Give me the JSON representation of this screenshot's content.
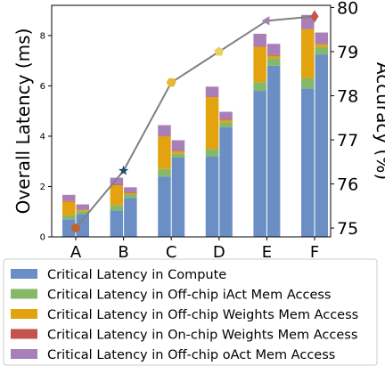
{
  "chart_data": {
    "type": "bar",
    "categories": [
      "A",
      "B",
      "C",
      "D",
      "E",
      "F"
    ],
    "y_left": {
      "label": "Overall Latency (ms)",
      "ylim": [
        0,
        9.2
      ],
      "ticks": [
        0,
        2,
        4,
        6,
        8
      ]
    },
    "y_right": {
      "label": "Accuracy (%)",
      "ylim": [
        74.8,
        80.05
      ],
      "ticks": [
        75,
        76,
        77,
        78,
        79,
        80
      ]
    },
    "grid": false,
    "legend_placement": "bottom",
    "stack_order": [
      "Compute",
      "Off-chip iAct",
      "Off-chip Weights",
      "On-chip Weights",
      "Off-chip oAct"
    ],
    "series": [
      {
        "name": "Critical Latency in Compute",
        "color": "#6b8fc4",
        "group1": [
          0.7,
          1.05,
          2.4,
          3.2,
          5.8,
          5.9
        ],
        "group2": [
          0.9,
          1.55,
          3.15,
          4.35,
          6.8,
          7.25
        ]
      },
      {
        "name": "Critical Latency in Off-chip iAct Mem Access",
        "color": "#86b86a",
        "group1": [
          0.15,
          0.2,
          0.3,
          0.3,
          0.35,
          0.4
        ],
        "group2": [
          0.12,
          0.15,
          0.15,
          0.2,
          0.3,
          0.3
        ]
      },
      {
        "name": "Critical Latency in Off-chip Weights Mem Access",
        "color": "#e3a30f",
        "group1": [
          0.55,
          0.8,
          1.3,
          2.05,
          1.4,
          1.95
        ],
        "group2": [
          0.05,
          0.05,
          0.1,
          0.1,
          0.1,
          0.1
        ]
      },
      {
        "name": "Critical Latency in On-chip Weights Mem Access",
        "color": "#c2544d",
        "group1": [
          0.02,
          0.02,
          0.02,
          0.02,
          0.02,
          0.02
        ],
        "group2": [
          0.02,
          0.02,
          0.02,
          0.02,
          0.02,
          0.02
        ]
      },
      {
        "name": "Critical Latency in Off-chip oAct Mem Access",
        "color": "#a97fb8",
        "group1": [
          0.25,
          0.28,
          0.42,
          0.4,
          0.5,
          0.55
        ],
        "group2": [
          0.2,
          0.2,
          0.42,
          0.3,
          0.45,
          0.45
        ]
      }
    ],
    "accuracy_line": {
      "values": [
        75.0,
        76.3,
        78.3,
        79.0,
        79.7,
        79.8
      ],
      "line_color": "#808080",
      "markers": [
        {
          "shape": "circle",
          "color": "#c0642f"
        },
        {
          "shape": "star",
          "color": "#1f4e6b"
        },
        {
          "shape": "hexagon",
          "color": "#e8b830"
        },
        {
          "shape": "pentagon",
          "color": "#e6d060"
        },
        {
          "shape": "triangle-left",
          "color": "#a97fb8"
        },
        {
          "shape": "diamond",
          "color": "#c2544d"
        }
      ]
    }
  }
}
